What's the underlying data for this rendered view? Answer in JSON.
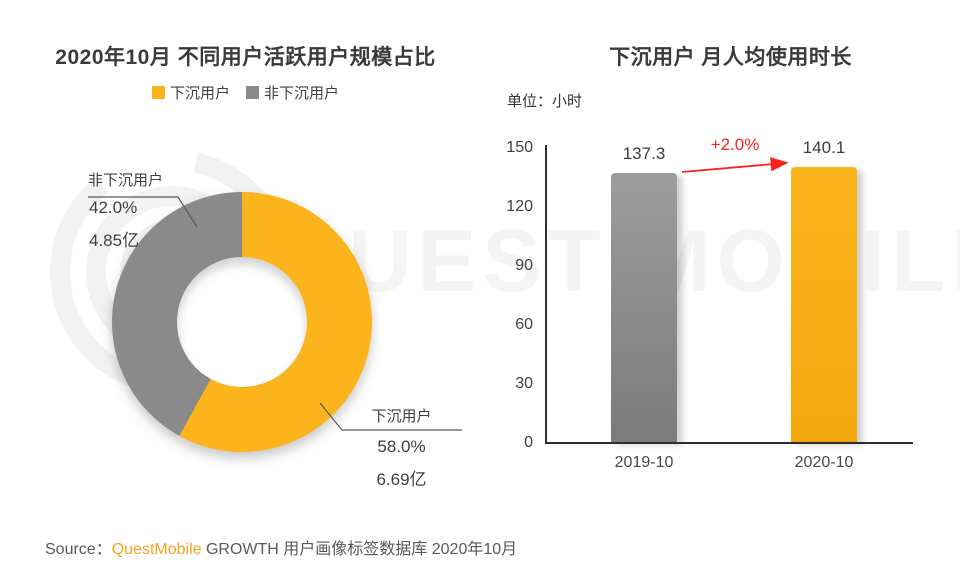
{
  "colors": {
    "sink_yellow": "#FBB41C",
    "sink_yellow_dark": "#F3A90E",
    "nonsink_gray": "#8A8A8A",
    "accent_red": "#FB2020",
    "brand_orange": "#F9A11B"
  },
  "watermark": {
    "text": "UEST MOBILE"
  },
  "chart_data": [
    {
      "type": "pie",
      "title": "2020年10月 不同用户活跃用户规模占比",
      "legend": [
        "下沉用户",
        "非下沉用户"
      ],
      "legend_position": "top",
      "donut_hole_ratio": 0.5,
      "start_angle_deg": 0,
      "slices": [
        {
          "label": "下沉用户",
          "percent": 58.0,
          "percent_text": "58.0%",
          "amount_text": "6.69亿",
          "color": "#FBB41C"
        },
        {
          "label": "非下沉用户",
          "percent": 42.0,
          "percent_text": "42.0%",
          "amount_text": "4.85亿",
          "color": "#8A8A8A"
        }
      ]
    },
    {
      "type": "bar",
      "title": "下沉用户 月人均使用时长",
      "unit_label": "单位：小时",
      "categories": [
        "2019-10",
        "2020-10"
      ],
      "values": [
        137.3,
        140.1
      ],
      "bar_colors": [
        "#8A8A8A",
        "#FBB41C"
      ],
      "growth_label": "+2.0%",
      "ylim": [
        0,
        150
      ],
      "yticks": [
        0,
        30,
        60,
        90,
        120,
        150
      ],
      "grid": false
    }
  ],
  "source": {
    "prefix": "Source：",
    "brand": "QuestMobile",
    "suffix": " GROWTH 用户画像标签数据库 2020年10月"
  }
}
